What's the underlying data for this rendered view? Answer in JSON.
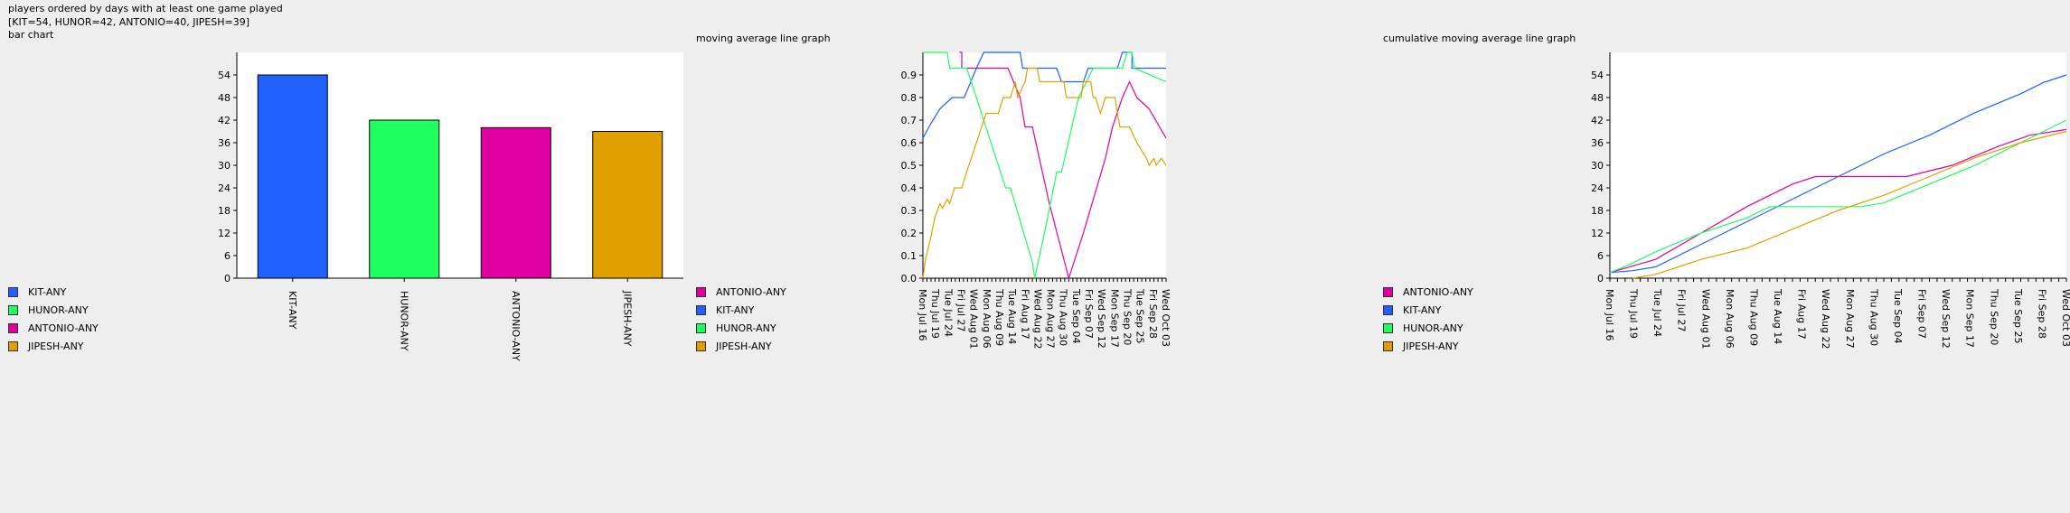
{
  "header": {
    "line1": "players ordered by days with at least one game played",
    "line2": "[KIT=54, HUNOR=42, ANTONIO=40, JIPESH=39]",
    "line3": "bar chart"
  },
  "panel_titles": {
    "moving": "moving average line graph",
    "cumulative": "cumulative moving average line graph"
  },
  "colors": {
    "KIT-ANY": "#2060ff",
    "HUNOR-ANY": "#20ff60",
    "ANTONIO-ANY": "#e000a0",
    "JIPESH-ANY": "#e0a000"
  },
  "legends": {
    "bar": [
      "KIT-ANY",
      "HUNOR-ANY",
      "ANTONIO-ANY",
      "JIPESH-ANY"
    ],
    "moving": [
      "ANTONIO-ANY",
      "KIT-ANY",
      "HUNOR-ANY",
      "JIPESH-ANY"
    ],
    "cumulative": [
      "ANTONIO-ANY",
      "KIT-ANY",
      "HUNOR-ANY",
      "JIPESH-ANY"
    ]
  },
  "chart_data": [
    {
      "type": "bar",
      "categories": [
        "KIT-ANY",
        "HUNOR-ANY",
        "ANTONIO-ANY",
        "JIPESH-ANY"
      ],
      "values": [
        54,
        42,
        40,
        39
      ],
      "ylim": [
        0,
        60
      ],
      "yticks": [
        0,
        6,
        12,
        18,
        24,
        30,
        36,
        42,
        48,
        54
      ]
    },
    {
      "type": "line",
      "ylim": [
        0,
        1.0
      ],
      "yticks": [
        "0.0",
        "0.1",
        "0.2",
        "0.3",
        "0.4",
        "0.5",
        "0.6",
        "0.7",
        "0.8",
        "0.9"
      ],
      "x_labels": [
        "Mon Jul 16",
        "Thu Jul 19",
        "Tue Jul 24",
        "Fri Jul 27",
        "Wed Aug 01",
        "Mon Aug 06",
        "Thu Aug 09",
        "Tue Aug 14",
        "Fri Aug 17",
        "Wed Aug 22",
        "Mon Aug 27",
        "Thu Aug 30",
        "Tue Sep 04",
        "Fri Sep 07",
        "Wed Sep 12",
        "Mon Sep 17",
        "Thu Sep 20",
        "Tue Sep 25",
        "Fri Sep 28",
        "Wed Oct 03"
      ],
      "series": [
        {
          "name": "ANTONIO-ANY",
          "points": [
            [
              0.15,
              1.0
            ],
            [
              0.16,
              1.0
            ],
            [
              0.16,
              0.93
            ],
            [
              0.35,
              0.93
            ],
            [
              0.4,
              0.8
            ],
            [
              0.42,
              0.67
            ],
            [
              0.45,
              0.67
            ],
            [
              0.52,
              0.33
            ],
            [
              0.6,
              0.0
            ],
            [
              0.66,
              0.2
            ],
            [
              0.75,
              0.53
            ],
            [
              0.78,
              0.67
            ],
            [
              0.82,
              0.8
            ],
            [
              0.85,
              0.87
            ],
            [
              0.88,
              0.8
            ],
            [
              0.93,
              0.75
            ],
            [
              1.0,
              0.62
            ]
          ]
        },
        {
          "name": "KIT-ANY",
          "points": [
            [
              0.0,
              0.62
            ],
            [
              0.03,
              0.68
            ],
            [
              0.07,
              0.75
            ],
            [
              0.12,
              0.8
            ],
            [
              0.17,
              0.8
            ],
            [
              0.22,
              0.93
            ],
            [
              0.25,
              1.0
            ],
            [
              0.4,
              1.0
            ],
            [
              0.41,
              0.93
            ],
            [
              0.55,
              0.93
            ],
            [
              0.57,
              0.87
            ],
            [
              0.66,
              0.87
            ],
            [
              0.68,
              0.93
            ],
            [
              0.8,
              0.93
            ],
            [
              0.82,
              1.0
            ],
            [
              0.86,
              1.0
            ],
            [
              0.86,
              0.93
            ],
            [
              1.0,
              0.93
            ]
          ]
        },
        {
          "name": "HUNOR-ANY",
          "points": [
            [
              0.0,
              1.0
            ],
            [
              0.1,
              1.0
            ],
            [
              0.11,
              0.93
            ],
            [
              0.18,
              0.93
            ],
            [
              0.22,
              0.8
            ],
            [
              0.28,
              0.6
            ],
            [
              0.34,
              0.4
            ],
            [
              0.36,
              0.4
            ],
            [
              0.45,
              0.07
            ],
            [
              0.46,
              0.0
            ],
            [
              0.5,
              0.2
            ],
            [
              0.55,
              0.47
            ],
            [
              0.57,
              0.47
            ],
            [
              0.64,
              0.8
            ],
            [
              0.7,
              0.93
            ],
            [
              0.82,
              0.93
            ],
            [
              0.84,
              1.0
            ],
            [
              0.86,
              1.0
            ],
            [
              0.87,
              0.93
            ],
            [
              1.0,
              0.87
            ]
          ]
        },
        {
          "name": "JIPESH-ANY",
          "points": [
            [
              0.0,
              0.0
            ],
            [
              0.01,
              0.08
            ],
            [
              0.03,
              0.17
            ],
            [
              0.05,
              0.27
            ],
            [
              0.07,
              0.33
            ],
            [
              0.08,
              0.31
            ],
            [
              0.1,
              0.35
            ],
            [
              0.11,
              0.33
            ],
            [
              0.13,
              0.4
            ],
            [
              0.16,
              0.4
            ],
            [
              0.18,
              0.47
            ],
            [
              0.26,
              0.73
            ],
            [
              0.31,
              0.73
            ],
            [
              0.33,
              0.8
            ],
            [
              0.36,
              0.8
            ],
            [
              0.38,
              0.87
            ],
            [
              0.39,
              0.8
            ],
            [
              0.42,
              0.87
            ],
            [
              0.43,
              0.93
            ],
            [
              0.47,
              0.93
            ],
            [
              0.48,
              0.87
            ],
            [
              0.58,
              0.87
            ],
            [
              0.59,
              0.8
            ],
            [
              0.65,
              0.8
            ],
            [
              0.66,
              0.87
            ],
            [
              0.69,
              0.87
            ],
            [
              0.7,
              0.8
            ],
            [
              0.71,
              0.8
            ],
            [
              0.73,
              0.73
            ],
            [
              0.75,
              0.8
            ],
            [
              0.79,
              0.8
            ],
            [
              0.8,
              0.73
            ],
            [
              0.81,
              0.67
            ],
            [
              0.85,
              0.67
            ],
            [
              0.88,
              0.6
            ],
            [
              0.92,
              0.53
            ],
            [
              0.93,
              0.5
            ],
            [
              0.95,
              0.53
            ],
            [
              0.96,
              0.5
            ],
            [
              0.98,
              0.53
            ],
            [
              1.0,
              0.5
            ]
          ]
        }
      ]
    },
    {
      "type": "line",
      "ylim": [
        0,
        60
      ],
      "yticks": [
        0,
        6,
        12,
        18,
        24,
        30,
        36,
        42,
        48,
        54
      ],
      "x_labels": [
        "Mon Jul 16",
        "Thu Jul 19",
        "Tue Jul 24",
        "Fri Jul 27",
        "Wed Aug 01",
        "Mon Aug 06",
        "Thu Aug 09",
        "Tue Aug 14",
        "Fri Aug 17",
        "Wed Aug 22",
        "Mon Aug 27",
        "Thu Aug 30",
        "Tue Sep 04",
        "Fri Sep 07",
        "Wed Sep 12",
        "Mon Sep 17",
        "Thu Sep 20",
        "Tue Sep 25",
        "Fri Sep 28",
        "Wed Oct 03"
      ],
      "series": [
        {
          "name": "ANTONIO-ANY",
          "points": [
            [
              0.0,
              1.5
            ],
            [
              0.1,
              5
            ],
            [
              0.2,
              12
            ],
            [
              0.3,
              19
            ],
            [
              0.4,
              25
            ],
            [
              0.45,
              27
            ],
            [
              0.55,
              27
            ],
            [
              0.65,
              27
            ],
            [
              0.75,
              30
            ],
            [
              0.85,
              35
            ],
            [
              0.92,
              38
            ],
            [
              1.0,
              39.5
            ]
          ]
        },
        {
          "name": "KIT-ANY",
          "points": [
            [
              0.0,
              1.5
            ],
            [
              0.05,
              2
            ],
            [
              0.1,
              3
            ],
            [
              0.2,
              9
            ],
            [
              0.3,
              15
            ],
            [
              0.4,
              21
            ],
            [
              0.5,
              27
            ],
            [
              0.6,
              33
            ],
            [
              0.7,
              38
            ],
            [
              0.8,
              44
            ],
            [
              0.9,
              49
            ],
            [
              0.95,
              52
            ],
            [
              1.0,
              54
            ]
          ]
        },
        {
          "name": "HUNOR-ANY",
          "points": [
            [
              0.0,
              1.5
            ],
            [
              0.05,
              4
            ],
            [
              0.1,
              7
            ],
            [
              0.2,
              12
            ],
            [
              0.3,
              16
            ],
            [
              0.35,
              19
            ],
            [
              0.45,
              19
            ],
            [
              0.55,
              19
            ],
            [
              0.6,
              20
            ],
            [
              0.7,
              25
            ],
            [
              0.8,
              30
            ],
            [
              0.9,
              36
            ],
            [
              1.0,
              42
            ]
          ]
        },
        {
          "name": "JIPESH-ANY",
          "points": [
            [
              0.05,
              0
            ],
            [
              0.1,
              1
            ],
            [
              0.15,
              3
            ],
            [
              0.2,
              5
            ],
            [
              0.3,
              8
            ],
            [
              0.4,
              13
            ],
            [
              0.5,
              18
            ],
            [
              0.6,
              22
            ],
            [
              0.7,
              27
            ],
            [
              0.8,
              32
            ],
            [
              0.9,
              36
            ],
            [
              1.0,
              39
            ]
          ]
        }
      ]
    }
  ]
}
